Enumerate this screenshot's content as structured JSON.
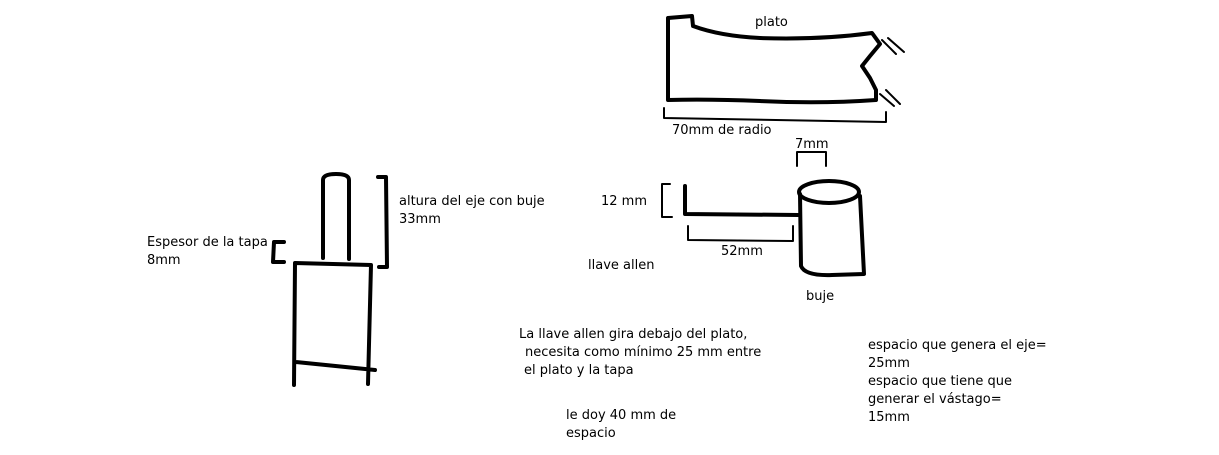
{
  "labels": {
    "plato": "plato",
    "radio": "70mm de radio",
    "siete_mm": "7mm",
    "doce_mm": "12 mm",
    "cincuentados_mm": "52mm",
    "llave_allen": "llave allen",
    "buje": "buje",
    "altura_line1": "altura del eje con buje",
    "altura_line2": "33mm",
    "espesor_line1": "Espesor de la tapa",
    "espesor_line2": "8mm"
  },
  "notes": {
    "giro_line1": "La llave allen gira debajo del plato,",
    "giro_line2": "necesita como mínimo 25 mm entre",
    "giro_line3": "el plato y la tapa",
    "doy_line1": "le doy 40 mm de",
    "doy_line2": "espacio",
    "espacio_line1": "espacio que genera el eje=",
    "espacio_line2": "25mm",
    "espacio_line3": "espacio que tiene que",
    "espacio_line4": "generar el vástago=",
    "espacio_line5": "15mm"
  }
}
